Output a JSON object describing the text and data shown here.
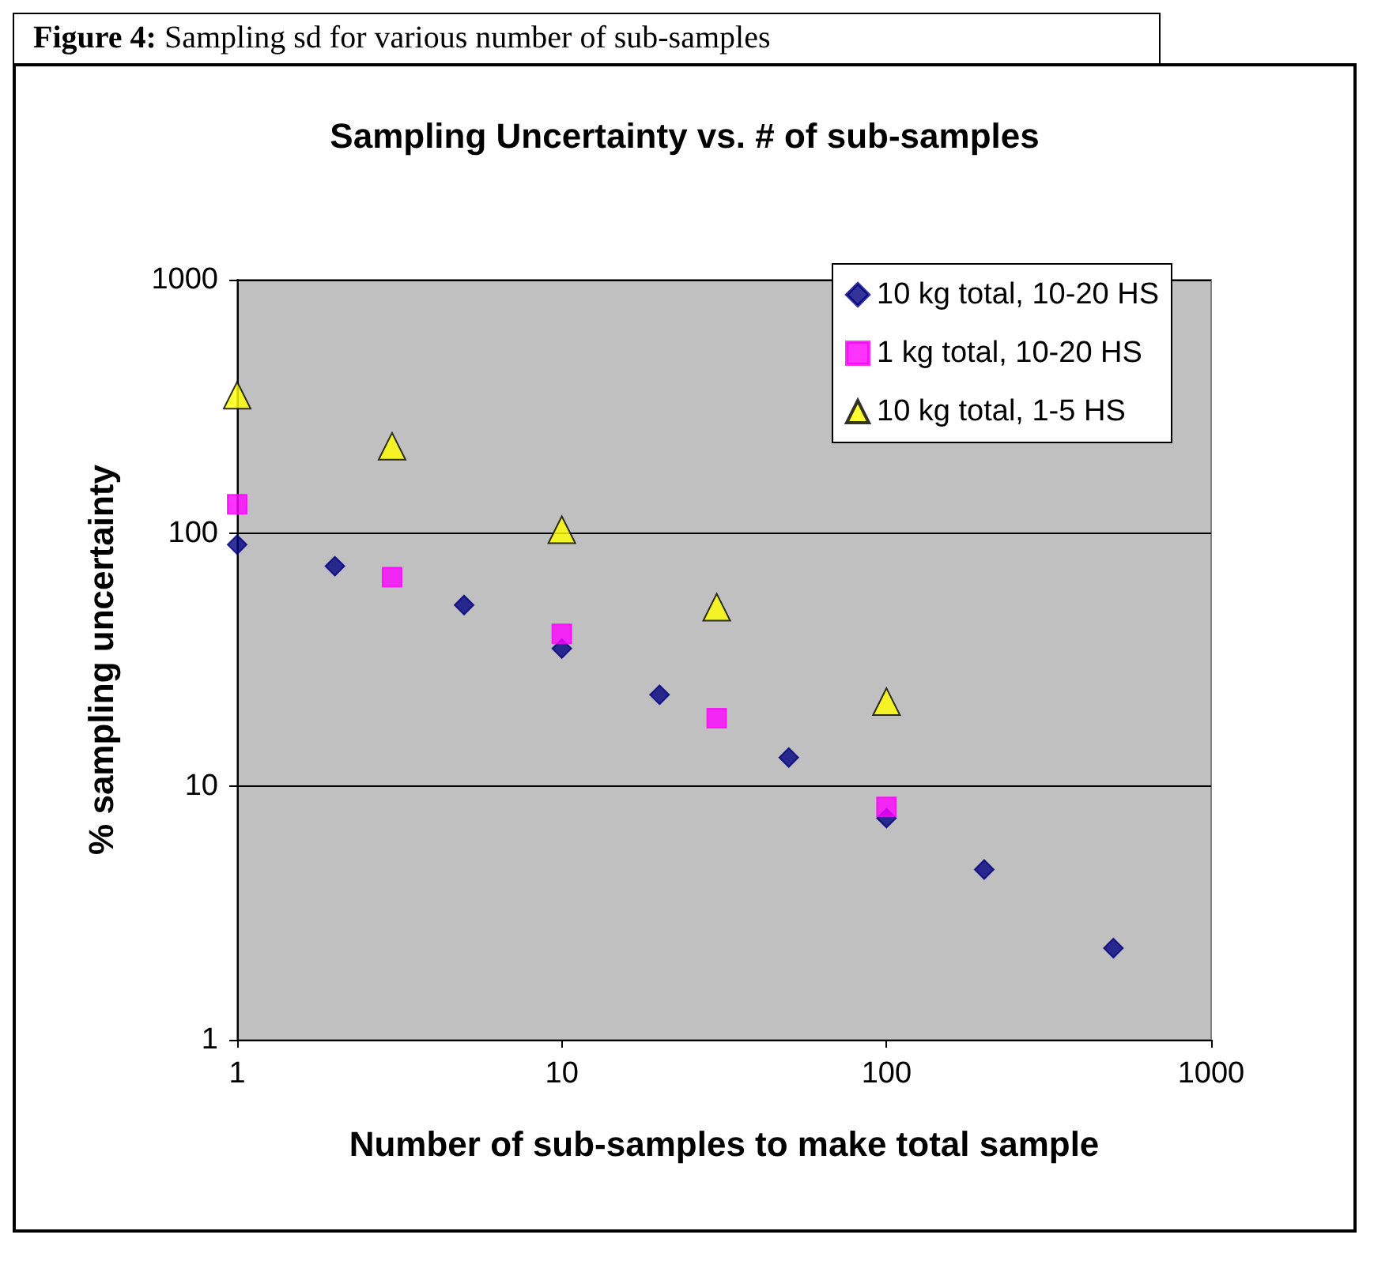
{
  "chart_data": {
    "type": "scatter",
    "title": "Sampling Uncertainty vs. # of sub-samples",
    "xlabel": "Number of sub-samples to make total sample",
    "ylabel": "% sampling uncertainty",
    "annotations": [
      "Figure 4: Sampling sd for various number of sub-samples"
    ],
    "series": [
      {
        "name": "10 kg total, 10-20 HS",
        "color": "#000080",
        "marker": "diamond",
        "x": [
          1,
          2,
          5,
          10,
          20,
          50,
          100,
          200,
          500
        ],
        "values": [
          90,
          74,
          52,
          35,
          23,
          13,
          7.5,
          4.7,
          2.3
        ]
      },
      {
        "name": "1 kg total, 10-20 HS",
        "color": "#ff00ff",
        "marker": "square",
        "x": [
          1,
          3,
          10,
          30,
          100
        ],
        "values": [
          130,
          67,
          40,
          18.6,
          8.3
        ]
      },
      {
        "name": "10 kg total, 1-5 HS",
        "color": "#ffff00",
        "marker": "triangle",
        "x": [
          1,
          3,
          10,
          30,
          100
        ],
        "values": [
          350,
          220,
          103,
          51,
          21.6
        ]
      }
    ],
    "log": "xy",
    "xlim": [
      1,
      1000
    ],
    "ylim": [
      1,
      1000
    ],
    "xticks": [
      1,
      10,
      100,
      1000
    ],
    "yticks": [
      1,
      10,
      100,
      1000
    ],
    "grid": "y",
    "legend": "top right"
  }
}
